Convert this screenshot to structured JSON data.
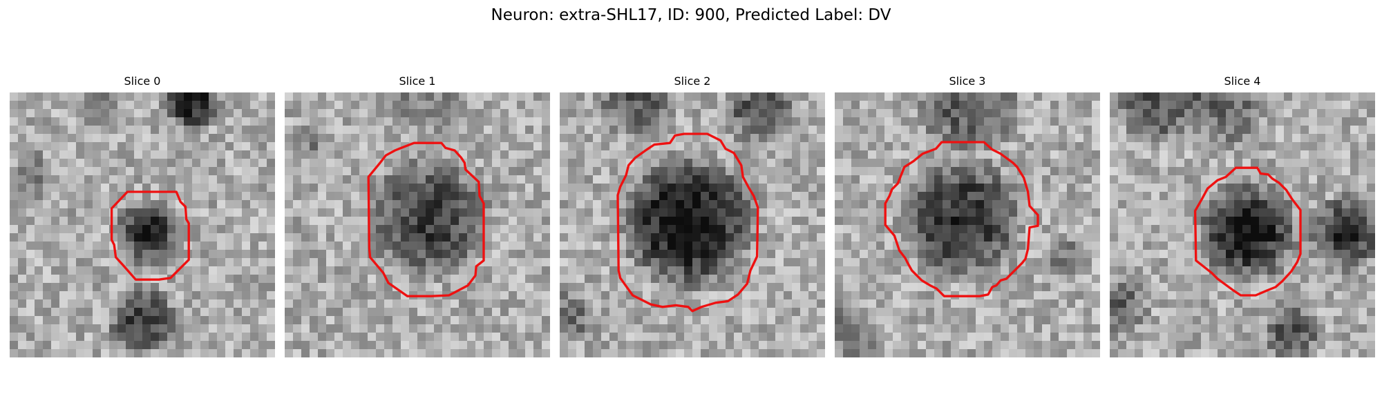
{
  "figure": {
    "title": "Neuron: extra-SHL17, ID: 900, Predicted Label: DV",
    "outline_color": "#ee1111",
    "colormap": "gray",
    "slices": [
      {
        "label": "Slice 0"
      },
      {
        "label": "Slice 1"
      },
      {
        "label": "Slice 2"
      },
      {
        "label": "Slice 3"
      },
      {
        "label": "Slice 4"
      }
    ]
  }
}
